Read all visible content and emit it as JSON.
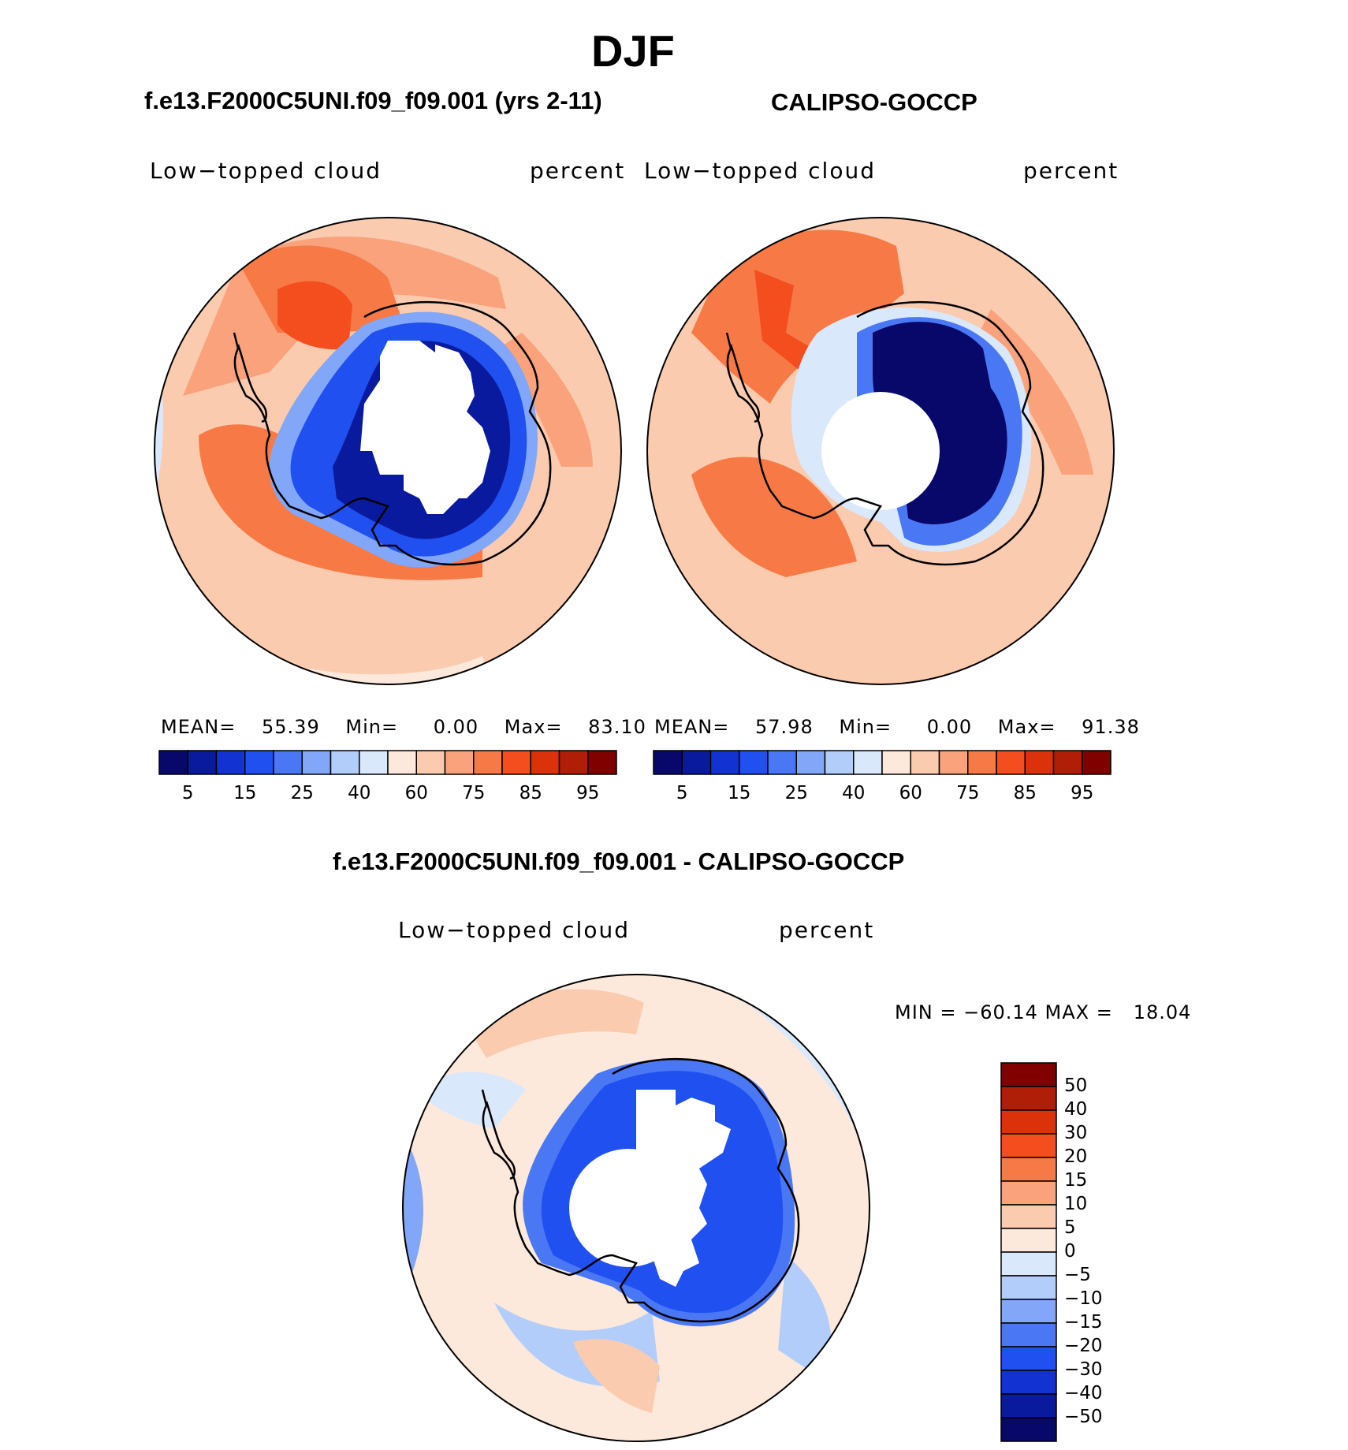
{
  "figure": {
    "season": "DJF",
    "left_title": "f.e13.F2000C5UNI.f09_f09.001 (yrs 2-11)",
    "right_title": "CALIPSO-GOCCP",
    "diff_title": "f.e13.F2000C5UNI.f09_f09.001 - CALIPSO-GOCCP"
  },
  "panels": {
    "model": {
      "variable": "Low−topped cloud",
      "units": "percent",
      "mean_label": "MEAN=",
      "mean": "55.39",
      "min_label": "Min=",
      "min": "0.00",
      "max_label": "Max=",
      "max": "83.10"
    },
    "obs": {
      "variable": "Low−topped cloud",
      "units": "percent",
      "mean_label": "MEAN=",
      "mean": "57.98",
      "min_label": "Min=",
      "min": "0.00",
      "max_label": "Max=",
      "max": "91.38"
    },
    "diff": {
      "variable": "Low−topped cloud",
      "units": "percent",
      "minmax_text": "MIN = −60.14 MAX =   18.04"
    }
  },
  "colors": {
    "abs_scale": [
      "#08086b",
      "#0a1a9e",
      "#1232d2",
      "#2050f0",
      "#4a78f4",
      "#82a6f8",
      "#b3cdfb",
      "#dae8fc",
      "#fde9dc",
      "#fbcbb0",
      "#f9a27c",
      "#f77a46",
      "#f44d1e",
      "#dc320c",
      "#b01e08",
      "#800000"
    ],
    "diff_scale": [
      "#08086b",
      "#0a1a9e",
      "#1232d2",
      "#2050f0",
      "#4a78f4",
      "#82a6f8",
      "#b3cdfb",
      "#dae8fc",
      "#fde9dc",
      "#fbcbb0",
      "#f9a27c",
      "#f77a46",
      "#f44d1e",
      "#dc320c",
      "#b01e08",
      "#800000"
    ]
  },
  "chart_data": [
    {
      "type": "heatmap",
      "projection": "south polar stereographic",
      "title": "f.e13.F2000C5UNI.f09_f09.001 (yrs 2-11)",
      "variable": "Low-topped cloud",
      "units": "percent",
      "mean": 55.39,
      "min": 0.0,
      "max": 83.1,
      "colorbar_levels": [
        5,
        10,
        15,
        20,
        25,
        30,
        40,
        50,
        60,
        70,
        75,
        80,
        85,
        90,
        95
      ],
      "colorbar_tick_labels": [
        "5",
        "15",
        "25",
        "40",
        "60",
        "75",
        "85",
        "95"
      ]
    },
    {
      "type": "heatmap",
      "projection": "south polar stereographic",
      "title": "CALIPSO-GOCCP",
      "variable": "Low-topped cloud",
      "units": "percent",
      "mean": 57.98,
      "min": 0.0,
      "max": 91.38,
      "colorbar_levels": [
        5,
        10,
        15,
        20,
        25,
        30,
        40,
        50,
        60,
        70,
        75,
        80,
        85,
        90,
        95
      ],
      "colorbar_tick_labels": [
        "5",
        "15",
        "25",
        "40",
        "60",
        "75",
        "85",
        "95"
      ]
    },
    {
      "type": "heatmap",
      "projection": "south polar stereographic",
      "title": "f.e13.F2000C5UNI.f09_f09.001 - CALIPSO-GOCCP",
      "variable": "Low-topped cloud",
      "units": "percent",
      "min": -60.14,
      "max": 18.04,
      "colorbar_levels": [
        -50,
        -40,
        -30,
        -20,
        -15,
        -10,
        -5,
        0,
        5,
        10,
        15,
        20,
        30,
        40,
        50
      ],
      "colorbar_tick_labels": [
        "50",
        "40",
        "30",
        "20",
        "15",
        "10",
        "5",
        "0",
        "−5",
        "−10",
        "−15",
        "−20",
        "−30",
        "−40",
        "−50"
      ]
    }
  ]
}
